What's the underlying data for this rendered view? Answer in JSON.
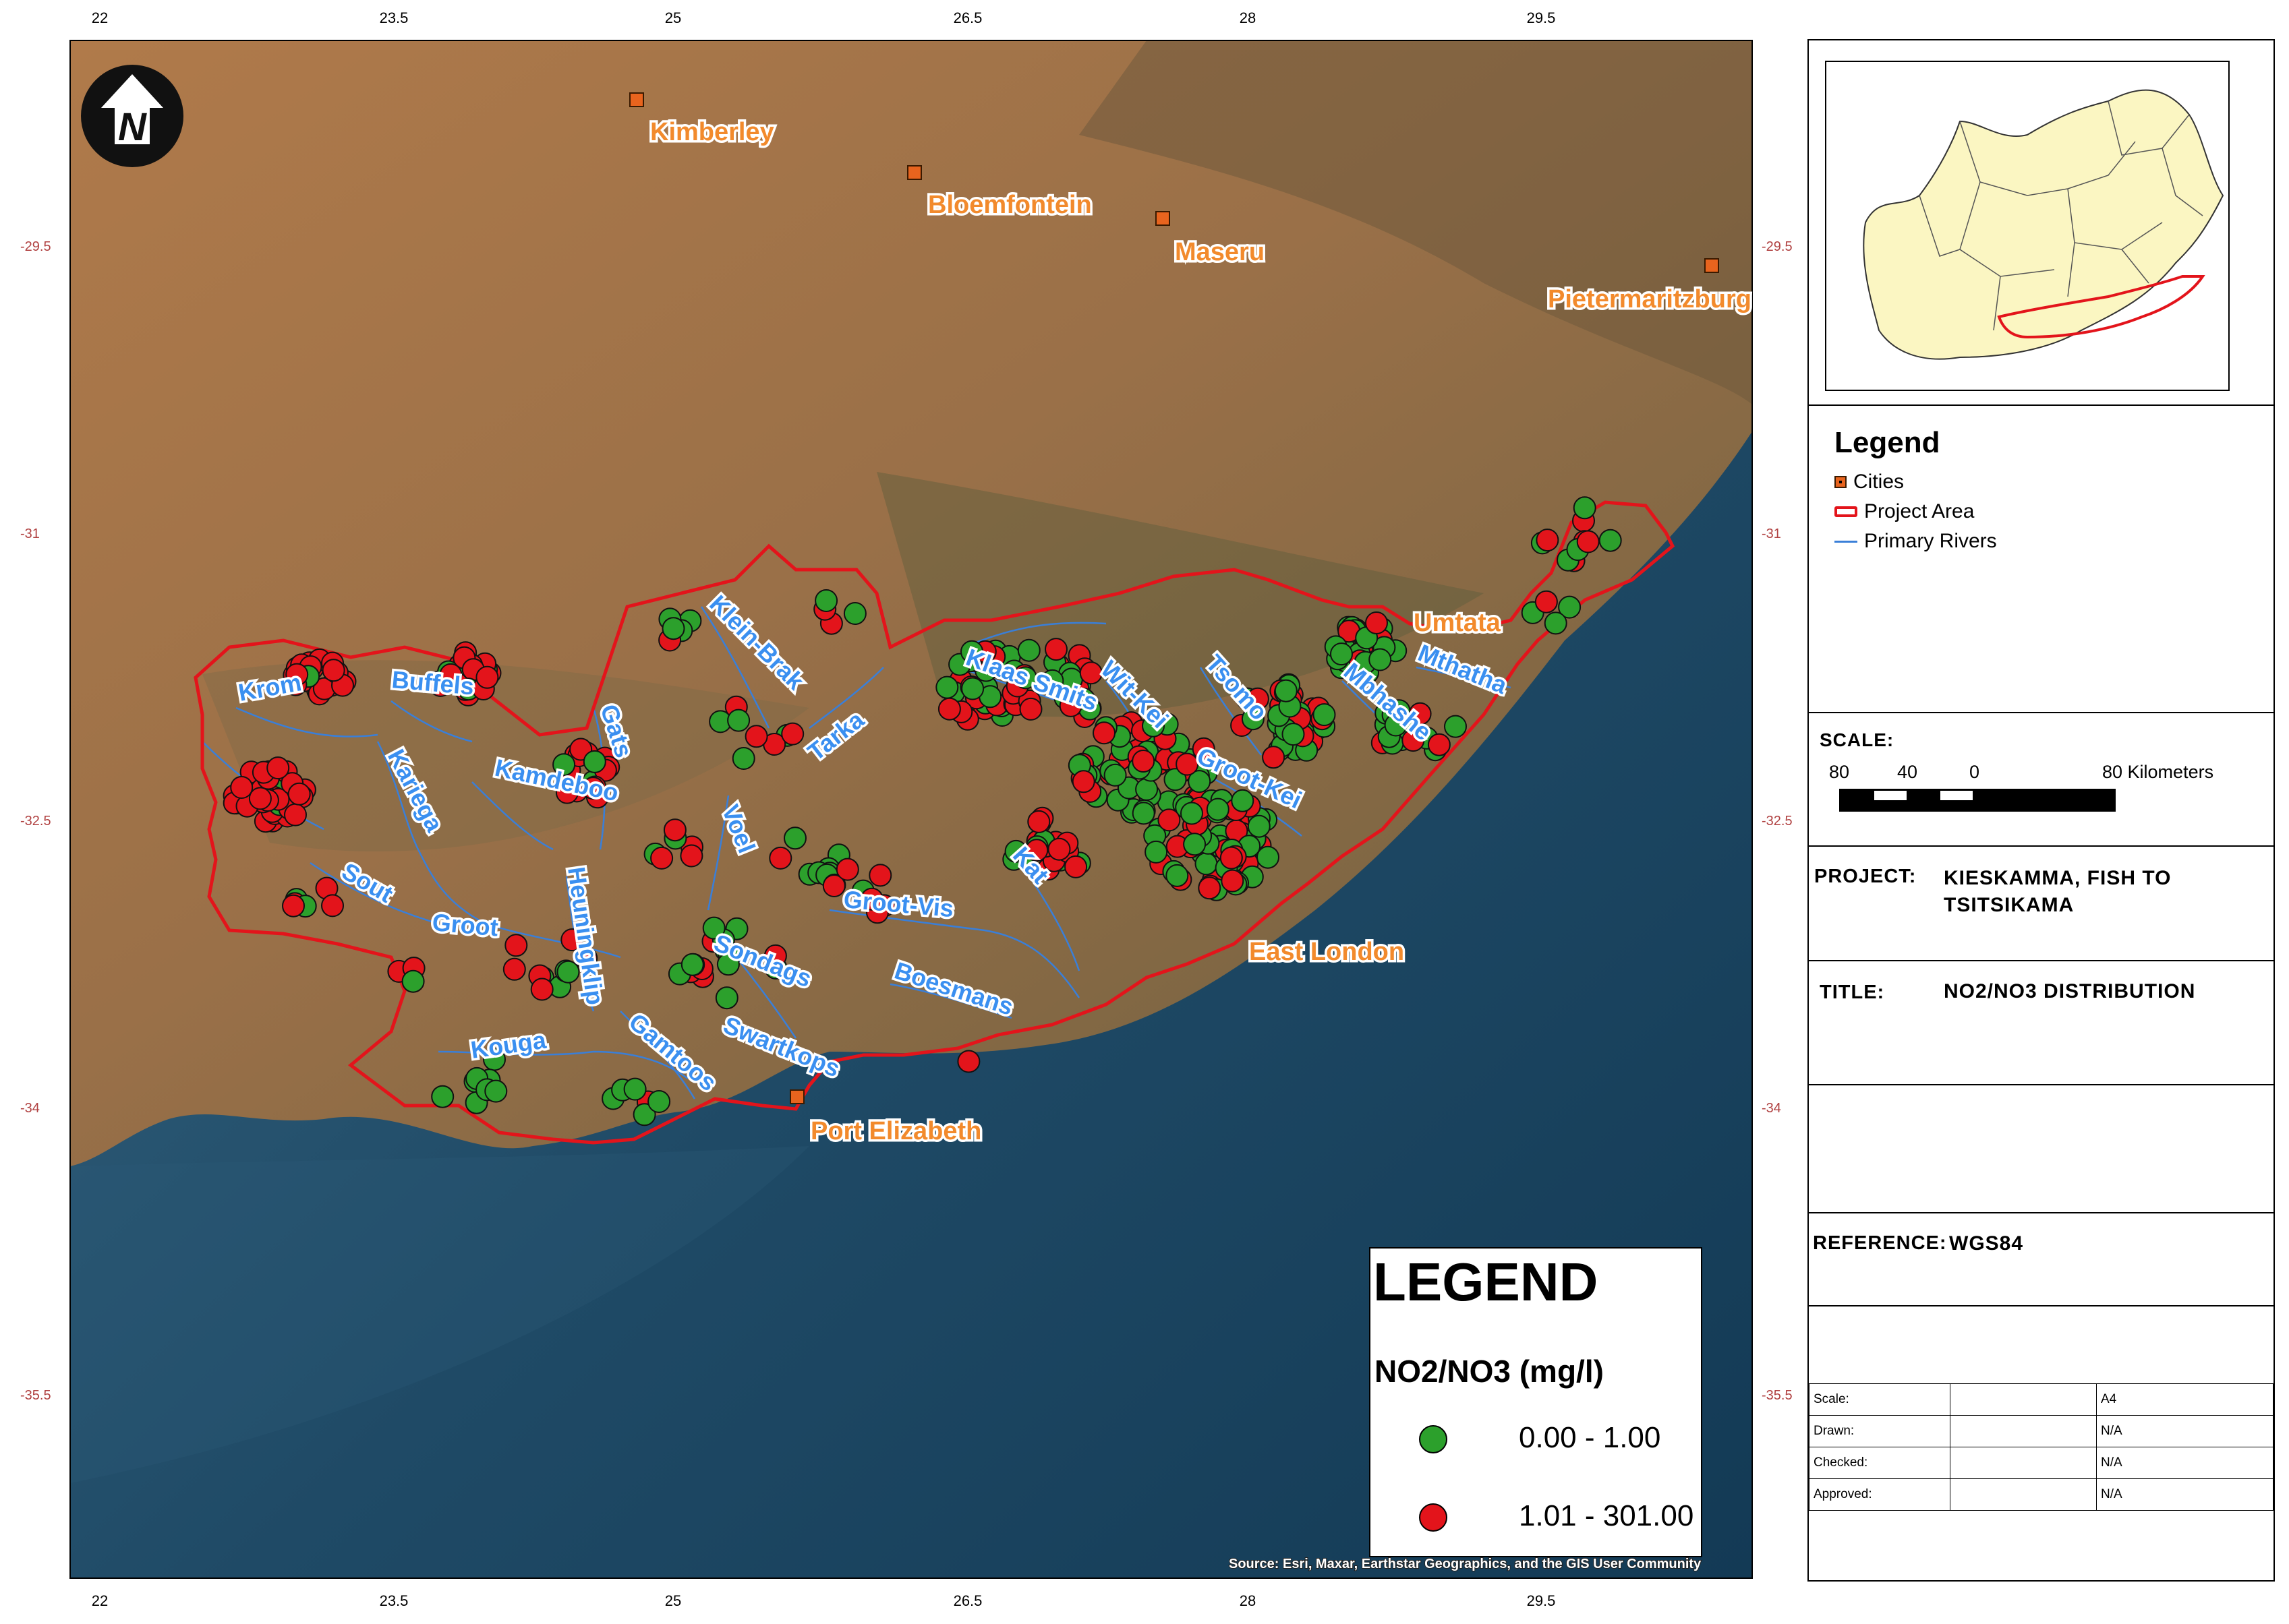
{
  "map": {
    "lon_ticks": [
      "22",
      "23.5",
      "25",
      "26.5",
      "28",
      "29.5"
    ],
    "lat_ticks": [
      "-29.5",
      "-31",
      "-32.5",
      "-34",
      "-35.5"
    ],
    "cities": [
      {
        "name": "Kimberley",
        "label": "Kimberley"
      },
      {
        "name": "Bloemfontein",
        "label": "Bloemfontein"
      },
      {
        "name": "Maseru",
        "label": "Maseru"
      },
      {
        "name": "Pietermaritzburg",
        "label": "Pietermaritzburg"
      },
      {
        "name": "Umtata",
        "label": "Umtata"
      },
      {
        "name": "East London",
        "label": "East London"
      },
      {
        "name": "Port Elizabeth",
        "label": "Port Elizabeth"
      }
    ],
    "rivers": [
      "Krom",
      "Buffels",
      "Kariega",
      "Kamdeboo",
      "Gats",
      "Sout",
      "Groot",
      "Heuningklip",
      "Kouga",
      "Gamtoos",
      "Swartkops",
      "Sondags",
      "Voel",
      "Klein-Brak",
      "Tarka",
      "Groot-Vis",
      "Boesmans",
      "Kat",
      "Klaas Smits",
      "Wit-Kei",
      "Tsomo",
      "Groot-Kei",
      "Mbhashe",
      "Mthatha"
    ],
    "attribution": "Source: Esri, Maxar, Earthstar Geographics, and the GIS User Community",
    "colors": {
      "low": "#2ca02c",
      "high": "#e3141b",
      "boundary": "#e3141b",
      "river": "#3a7fd8",
      "city": "#f28a2c"
    }
  },
  "map_legend": {
    "title": "LEGEND",
    "subtitle": "NO2/NO3 (mg/l)",
    "classes": [
      {
        "label": "0.00 - 1.00",
        "color": "#2ca02c"
      },
      {
        "label": "1.01 - 301.00",
        "color": "#e3141b"
      }
    ]
  },
  "panel": {
    "legend": {
      "title": "Legend",
      "items": [
        "Cities",
        "Project Area",
        "Primary Rivers"
      ]
    },
    "scale": {
      "label": "SCALE:",
      "ticks": [
        "80",
        "40",
        "0",
        "80 Kilometers"
      ]
    },
    "project": {
      "key": "PROJECT:",
      "value_line1": "KIESKAMMA, FISH TO",
      "value_line2": "TSITSIKAMA"
    },
    "title": {
      "key": "TITLE:",
      "value": "NO2/NO3 DISTRIBUTION"
    },
    "reference": {
      "key": "REFERENCE:",
      "value": "WGS84"
    },
    "table": [
      {
        "key": "Scale:",
        "value": "A4"
      },
      {
        "key": "Drawn:",
        "value": "N/A"
      },
      {
        "key": "Checked:",
        "value": "N/A"
      },
      {
        "key": "Approved:",
        "value": "N/A"
      }
    ]
  }
}
